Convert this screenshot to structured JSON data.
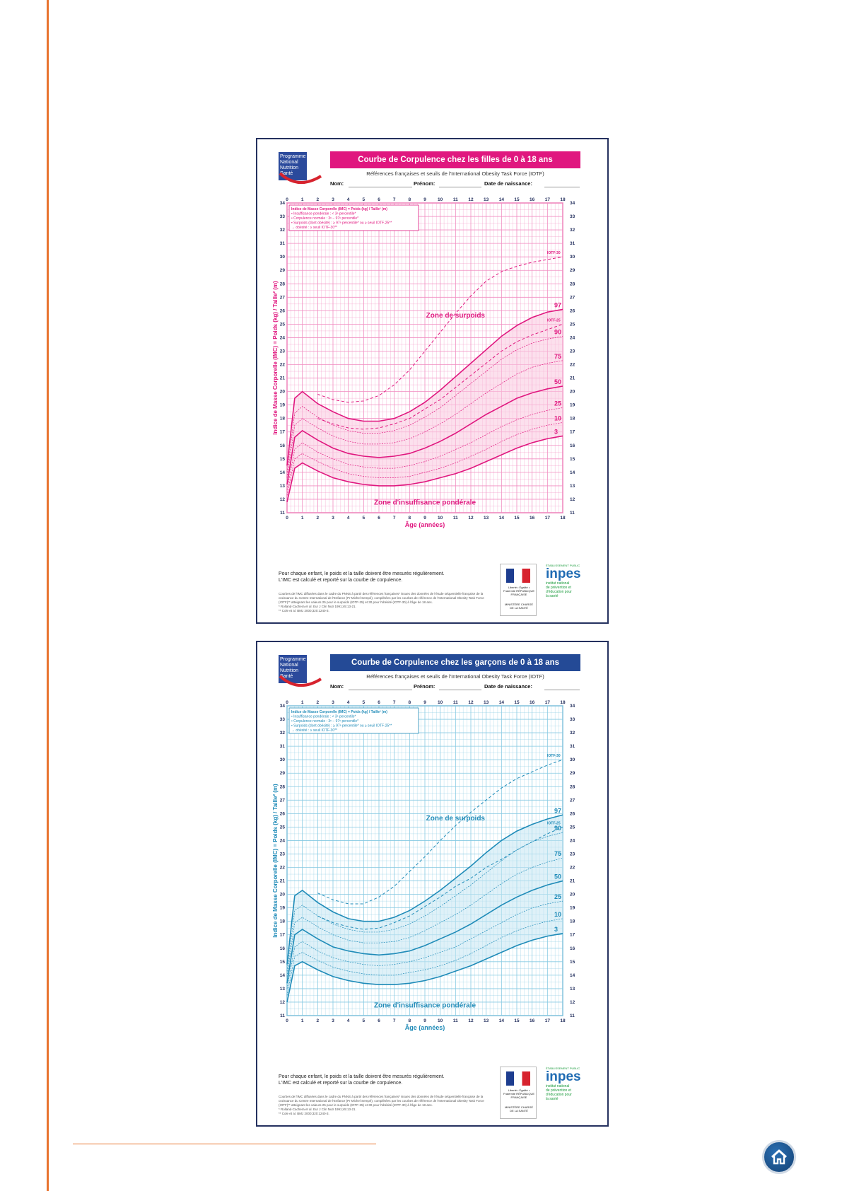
{
  "nav": {
    "home_icon": "home-icon"
  },
  "common": {
    "subtitle": "Références françaises et seuils de l'International Obesity Task Force (IOTF)",
    "field_nom": "Nom:",
    "field_prenom": "Prénom:",
    "field_naissance": "Date de naissance:",
    "logo_pnns": [
      "Programme",
      "National",
      "Nutrition",
      "Santé"
    ],
    "legend_lines": [
      "Indice de Masse Corporelle (IMC) = Poids (kg) / Taille² (m)",
      "• Insuffisance pondérale : < 3ᵉ percentile*",
      "• Corpulence normale : 3ᵉ − 97ᵉ percentile*",
      "• Surpoids (dont obésité) : ≥ 97ᵉ percentile* ou ≥ seuil IOTF-25**",
      "   → obésité : ≥ seuil IOTF-30**"
    ],
    "zone_surpoids": "Zone de surpoids",
    "zone_insuffisance": "Zone d'insuffisance pondérale",
    "note_line1": "Pour chaque enfant, le poids et la taille doivent être mesurés régulièrement.",
    "note_line2": "L'IMC est calculé et reporté sur la courbe de corpulence.",
    "refs": [
      "Courbes de l'IMC diffusées dans le cadre du PNNS à partir des références françaises* issues des données de l'étude séquentielle française de la croissance du Centre International de l'Enfance (Pr Michel Sempé), complétées par les courbes de référence de l'International Obesity Task Force (IOTF)** atteignant les valeurs 25 pour le surpoids (IOTF-25) et 30 pour l'obésité (IOTF-30) à l'âge de 18 ans.",
      "* Rolland-Cachera et al. Eur J Clin Nutr 1991;45:13-21.",
      "** Cole et al. BMJ 2000;320:1240-3."
    ],
    "logo_republique": "Liberté • Égalité • Fraternité RÉPUBLIQUE FRANÇAISE",
    "logo_ministere": "MINISTÈRE CHARGÉ DE LA SANTÉ",
    "logo_inpes_small": "ÉTABLISSEMENT PUBLIC",
    "logo_inpes_name": "inpes",
    "logo_inpes_tag": [
      "institut national",
      "de prévention et",
      "d'éducation pour",
      "la santé"
    ]
  },
  "chart_data": [
    {
      "type": "line",
      "title": "Courbe de Corpulence chez les filles de 0 à 18 ans",
      "xlabel": "Âge (années)",
      "ylabel": "Indice de Masse Corporelle (IMC) = Poids (kg) / Taille² (m)",
      "xlim": [
        0,
        18
      ],
      "ylim": [
        11,
        34
      ],
      "x_ticks": [
        0,
        1,
        2,
        3,
        4,
        5,
        6,
        7,
        8,
        9,
        10,
        11,
        12,
        13,
        14,
        15,
        16,
        17,
        18
      ],
      "y_ticks": [
        11,
        12,
        13,
        14,
        15,
        16,
        17,
        18,
        19,
        20,
        21,
        22,
        23,
        24,
        25,
        26,
        27,
        28,
        29,
        30,
        31,
        32,
        33,
        34
      ],
      "grid": true,
      "colors": {
        "main": "#e0177f",
        "grid": "#f18cc0",
        "band": "#f9c6df",
        "title_bg": "#e0177f"
      },
      "series": [
        {
          "name": "3",
          "style": "solid",
          "x": [
            0,
            0.5,
            1,
            2,
            3,
            4,
            5,
            6,
            7,
            8,
            9,
            10,
            11,
            12,
            13,
            14,
            15,
            16,
            17,
            18
          ],
          "y": [
            11.8,
            14.3,
            14.7,
            14.1,
            13.6,
            13.3,
            13.1,
            13.0,
            13.0,
            13.1,
            13.3,
            13.6,
            13.9,
            14.3,
            14.8,
            15.3,
            15.8,
            16.2,
            16.5,
            16.7
          ]
        },
        {
          "name": "10",
          "style": "thin",
          "x": [
            0,
            0.5,
            1,
            2,
            3,
            4,
            5,
            6,
            7,
            8,
            9,
            10,
            11,
            12,
            13,
            14,
            15,
            16,
            17,
            18
          ],
          "y": [
            12.3,
            15.0,
            15.4,
            14.8,
            14.3,
            13.9,
            13.7,
            13.6,
            13.6,
            13.7,
            14.0,
            14.3,
            14.7,
            15.2,
            15.7,
            16.3,
            16.8,
            17.2,
            17.5,
            17.7
          ]
        },
        {
          "name": "25",
          "style": "thin",
          "x": [
            0,
            0.5,
            1,
            2,
            3,
            4,
            5,
            6,
            7,
            8,
            9,
            10,
            11,
            12,
            13,
            14,
            15,
            16,
            17,
            18
          ],
          "y": [
            12.7,
            15.7,
            16.2,
            15.5,
            15.0,
            14.6,
            14.4,
            14.3,
            14.3,
            14.5,
            14.8,
            15.2,
            15.7,
            16.2,
            16.8,
            17.4,
            17.9,
            18.3,
            18.6,
            18.8
          ]
        },
        {
          "name": "50",
          "style": "solid",
          "x": [
            0,
            0.5,
            1,
            2,
            3,
            4,
            5,
            6,
            7,
            8,
            9,
            10,
            11,
            12,
            13,
            14,
            15,
            16,
            17,
            18
          ],
          "y": [
            13.1,
            16.6,
            17.1,
            16.4,
            15.8,
            15.4,
            15.2,
            15.1,
            15.2,
            15.4,
            15.8,
            16.3,
            16.9,
            17.6,
            18.3,
            18.9,
            19.5,
            19.9,
            20.2,
            20.4
          ]
        },
        {
          "name": "75",
          "style": "thin",
          "x": [
            0,
            0.5,
            1,
            2,
            3,
            4,
            5,
            6,
            7,
            8,
            9,
            10,
            11,
            12,
            13,
            14,
            15,
            16,
            17,
            18
          ],
          "y": [
            13.6,
            17.5,
            18.0,
            17.3,
            16.7,
            16.3,
            16.1,
            16.1,
            16.2,
            16.5,
            17.0,
            17.6,
            18.3,
            19.1,
            19.9,
            20.6,
            21.3,
            21.8,
            22.1,
            22.3
          ]
        },
        {
          "name": "90",
          "style": "thin",
          "x": [
            0,
            0.5,
            1,
            2,
            3,
            4,
            5,
            6,
            7,
            8,
            9,
            10,
            11,
            12,
            13,
            14,
            15,
            16,
            17,
            18
          ],
          "y": [
            14.0,
            18.4,
            18.9,
            18.1,
            17.5,
            17.1,
            16.9,
            16.9,
            17.1,
            17.5,
            18.1,
            18.8,
            19.7,
            20.6,
            21.5,
            22.4,
            23.1,
            23.6,
            23.9,
            24.1
          ]
        },
        {
          "name": "97",
          "style": "solid",
          "x": [
            0,
            0.5,
            1,
            2,
            3,
            4,
            5,
            6,
            7,
            8,
            9,
            10,
            11,
            12,
            13,
            14,
            15,
            16,
            17,
            18
          ],
          "y": [
            14.5,
            19.5,
            20.0,
            19.1,
            18.5,
            18.0,
            17.8,
            17.8,
            18.0,
            18.5,
            19.2,
            20.1,
            21.1,
            22.1,
            23.1,
            24.1,
            24.9,
            25.5,
            25.9,
            26.1
          ]
        },
        {
          "name": "IOTF-25",
          "style": "dashed",
          "x": [
            2,
            3,
            4,
            5,
            6,
            7,
            8,
            9,
            10,
            11,
            12,
            13,
            14,
            15,
            16,
            17,
            18
          ],
          "y": [
            18.0,
            17.6,
            17.3,
            17.2,
            17.3,
            17.6,
            18.0,
            18.7,
            19.4,
            20.3,
            21.2,
            22.1,
            23.0,
            23.7,
            24.2,
            24.6,
            25.0
          ]
        },
        {
          "name": "IOTF-30",
          "style": "dashed",
          "x": [
            2,
            3,
            4,
            5,
            6,
            7,
            8,
            9,
            10,
            11,
            12,
            13,
            14,
            15,
            16,
            17,
            18
          ],
          "y": [
            19.8,
            19.4,
            19.2,
            19.3,
            19.7,
            20.5,
            21.6,
            23.0,
            24.4,
            25.8,
            27.1,
            28.2,
            28.9,
            29.3,
            29.6,
            29.8,
            30.0
          ]
        }
      ]
    },
    {
      "type": "line",
      "title": "Courbe de Corpulence chez les garçons de 0 à 18 ans",
      "xlabel": "Âge (années)",
      "ylabel": "Indice de Masse Corporelle (IMC) = Poids (kg) / Taille² (m)",
      "xlim": [
        0,
        18
      ],
      "ylim": [
        11,
        34
      ],
      "x_ticks": [
        0,
        1,
        2,
        3,
        4,
        5,
        6,
        7,
        8,
        9,
        10,
        11,
        12,
        13,
        14,
        15,
        16,
        17,
        18
      ],
      "y_ticks": [
        11,
        12,
        13,
        14,
        15,
        16,
        17,
        18,
        19,
        20,
        21,
        22,
        23,
        24,
        25,
        26,
        27,
        28,
        29,
        30,
        31,
        32,
        33,
        34
      ],
      "grid": true,
      "colors": {
        "main": "#1f8bb8",
        "grid": "#86c9e2",
        "band": "#c4e5f2",
        "title_bg": "#244a96"
      },
      "series": [
        {
          "name": "3",
          "style": "solid",
          "x": [
            0,
            0.5,
            1,
            2,
            3,
            4,
            5,
            6,
            7,
            8,
            9,
            10,
            11,
            12,
            13,
            14,
            15,
            16,
            17,
            18
          ],
          "y": [
            12.0,
            14.7,
            15.0,
            14.4,
            13.9,
            13.6,
            13.4,
            13.3,
            13.3,
            13.4,
            13.6,
            13.9,
            14.3,
            14.7,
            15.2,
            15.7,
            16.2,
            16.6,
            16.9,
            17.1
          ]
        },
        {
          "name": "10",
          "style": "thin",
          "x": [
            0,
            0.5,
            1,
            2,
            3,
            4,
            5,
            6,
            7,
            8,
            9,
            10,
            11,
            12,
            13,
            14,
            15,
            16,
            17,
            18
          ],
          "y": [
            12.5,
            15.4,
            15.7,
            15.1,
            14.6,
            14.3,
            14.1,
            14.0,
            14.0,
            14.2,
            14.4,
            14.7,
            15.1,
            15.6,
            16.2,
            16.8,
            17.3,
            17.7,
            18.0,
            18.2
          ]
        },
        {
          "name": "25",
          "style": "thin",
          "x": [
            0,
            0.5,
            1,
            2,
            3,
            4,
            5,
            6,
            7,
            8,
            9,
            10,
            11,
            12,
            13,
            14,
            15,
            16,
            17,
            18
          ],
          "y": [
            13.0,
            16.1,
            16.5,
            15.8,
            15.3,
            15.0,
            14.8,
            14.7,
            14.8,
            15.0,
            15.3,
            15.7,
            16.1,
            16.7,
            17.3,
            17.9,
            18.5,
            19.0,
            19.3,
            19.5
          ]
        },
        {
          "name": "50",
          "style": "solid",
          "x": [
            0,
            0.5,
            1,
            2,
            3,
            4,
            5,
            6,
            7,
            8,
            9,
            10,
            11,
            12,
            13,
            14,
            15,
            16,
            17,
            18
          ],
          "y": [
            13.4,
            17.0,
            17.4,
            16.7,
            16.1,
            15.8,
            15.6,
            15.5,
            15.6,
            15.8,
            16.2,
            16.7,
            17.2,
            17.8,
            18.5,
            19.2,
            19.8,
            20.3,
            20.7,
            21.0
          ]
        },
        {
          "name": "75",
          "style": "thin",
          "x": [
            0,
            0.5,
            1,
            2,
            3,
            4,
            5,
            6,
            7,
            8,
            9,
            10,
            11,
            12,
            13,
            14,
            15,
            16,
            17,
            18
          ],
          "y": [
            13.9,
            17.9,
            18.3,
            17.6,
            17.0,
            16.6,
            16.4,
            16.4,
            16.5,
            16.8,
            17.3,
            17.9,
            18.5,
            19.2,
            20.0,
            20.8,
            21.5,
            22.0,
            22.4,
            22.7
          ]
        },
        {
          "name": "90",
          "style": "thin",
          "x": [
            0,
            0.5,
            1,
            2,
            3,
            4,
            5,
            6,
            7,
            8,
            9,
            10,
            11,
            12,
            13,
            14,
            15,
            16,
            17,
            18
          ],
          "y": [
            14.3,
            18.8,
            19.2,
            18.4,
            17.8,
            17.4,
            17.2,
            17.2,
            17.4,
            17.8,
            18.4,
            19.1,
            19.9,
            20.7,
            21.6,
            22.5,
            23.3,
            23.9,
            24.3,
            24.6
          ]
        },
        {
          "name": "97",
          "style": "solid",
          "x": [
            0,
            0.5,
            1,
            2,
            3,
            4,
            5,
            6,
            7,
            8,
            9,
            10,
            11,
            12,
            13,
            14,
            15,
            16,
            17,
            18
          ],
          "y": [
            14.8,
            19.9,
            20.3,
            19.4,
            18.7,
            18.2,
            18.0,
            18.0,
            18.3,
            18.8,
            19.5,
            20.3,
            21.2,
            22.1,
            23.1,
            24.0,
            24.7,
            25.2,
            25.6,
            25.9
          ]
        },
        {
          "name": "IOTF-25",
          "style": "dashed",
          "x": [
            2,
            3,
            4,
            5,
            6,
            7,
            8,
            9,
            10,
            11,
            12,
            13,
            14,
            15,
            16,
            17,
            18
          ],
          "y": [
            18.4,
            17.9,
            17.6,
            17.4,
            17.5,
            17.9,
            18.4,
            19.1,
            19.8,
            20.6,
            21.2,
            22.0,
            22.6,
            23.3,
            23.9,
            24.5,
            25.0
          ]
        },
        {
          "name": "IOTF-30",
          "style": "dashed",
          "x": [
            2,
            3,
            4,
            5,
            6,
            7,
            8,
            9,
            10,
            11,
            12,
            13,
            14,
            15,
            16,
            17,
            18
          ],
          "y": [
            20.1,
            19.6,
            19.3,
            19.3,
            19.8,
            20.6,
            21.7,
            22.8,
            24.0,
            25.1,
            26.1,
            27.0,
            27.9,
            28.6,
            29.1,
            29.6,
            30.0
          ]
        }
      ]
    }
  ]
}
